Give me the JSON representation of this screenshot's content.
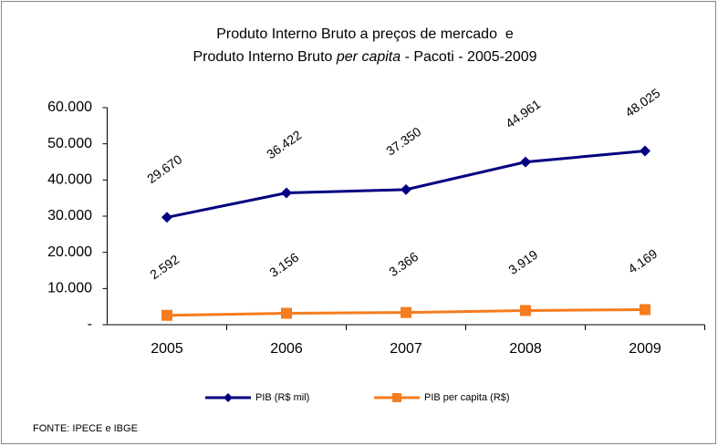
{
  "chart_data": {
    "type": "line",
    "title": "Produto Interno Bruto a preços de mercado  e",
    "subtitle": [
      {
        "text": "Produto Interno Bruto "
      },
      {
        "text": "per capita",
        "italic": true
      },
      {
        "text": " - Pacoti - 2005-2009"
      }
    ],
    "categories": [
      "2005",
      "2006",
      "2007",
      "2008",
      "2009"
    ],
    "series": [
      {
        "name": "PIB (R$ mil)",
        "color": "#000080",
        "marker": "diamond",
        "values": [
          29670,
          36422,
          37350,
          44961,
          48025
        ],
        "value_labels": [
          "29.670",
          "36.422",
          "37.350",
          "44.961",
          "48.025"
        ]
      },
      {
        "name": "PIB per capita (R$)",
        "color": "#f57c1f",
        "marker": "square",
        "values": [
          2592,
          3156,
          3366,
          3919,
          4169
        ],
        "value_labels": [
          "2.592",
          "3.156",
          "3.366",
          "3.919",
          "4.169"
        ]
      }
    ],
    "ylim": [
      0,
      60000
    ],
    "yticks": [
      {
        "value": 0,
        "label": "-"
      },
      {
        "value": 10000,
        "label": "10.000"
      },
      {
        "value": 20000,
        "label": "20.000"
      },
      {
        "value": 30000,
        "label": "30.000"
      },
      {
        "value": 40000,
        "label": "40.000"
      },
      {
        "value": 50000,
        "label": "50.000"
      },
      {
        "value": 60000,
        "label": "60.000"
      }
    ],
    "grid": false,
    "legend": "bottom",
    "source": "FONTE: IPECE e IBGE"
  }
}
